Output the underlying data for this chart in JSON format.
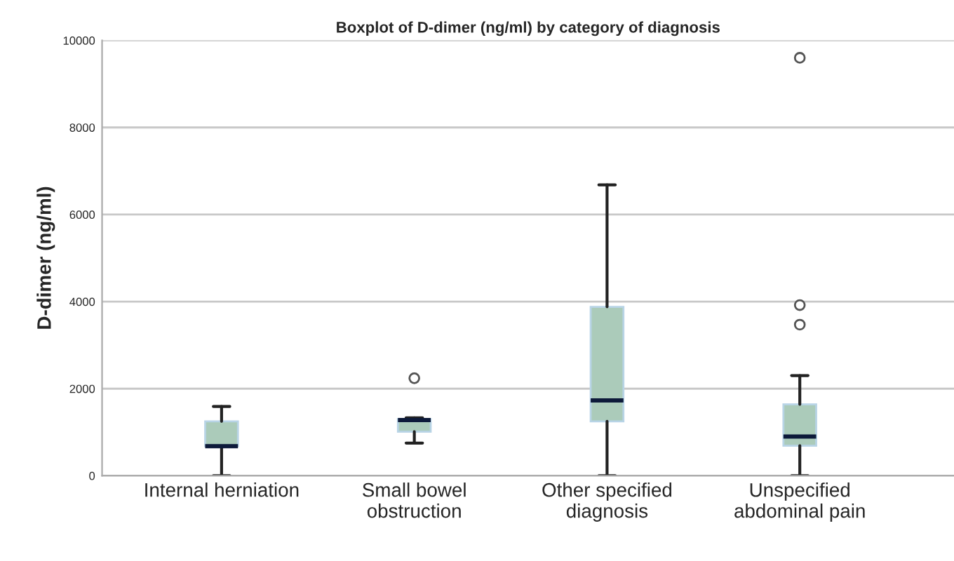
{
  "chart_data": {
    "type": "box",
    "title": "Boxplot of D-dimer (ng/ml) by category of diagnosis",
    "ylabel": "D-dimer (ng/ml)",
    "categories": [
      "Internal herniation",
      "Small bowel\nobstruction",
      "Other specified\ndiagnosis",
      "Unspecified\nabdominal pain"
    ],
    "boxes": [
      {
        "low": 0,
        "q1": 680,
        "median": 680,
        "q3": 1250,
        "high": 1590
      },
      {
        "low": 750,
        "q1": 1010,
        "median": 1280,
        "q3": 1300,
        "high": 1330,
        "outliers": [
          2240
        ]
      },
      {
        "low": 0,
        "q1": 1250,
        "median": 1730,
        "q3": 3880,
        "high": 6680
      },
      {
        "low": 0,
        "q1": 690,
        "median": 900,
        "q3": 1640,
        "high": 2300,
        "outliers": [
          3470,
          3920,
          9600
        ]
      }
    ],
    "color": "#abcbba",
    "ylim": [
      0,
      10000
    ],
    "yticks": [
      0,
      2000,
      4000,
      6000,
      8000,
      10000
    ],
    "grid": "y"
  }
}
